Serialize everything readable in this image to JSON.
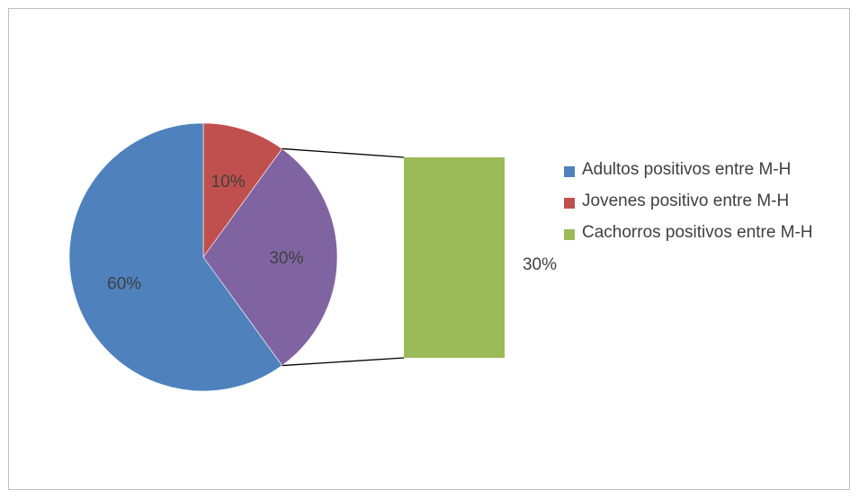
{
  "chart_data": {
    "type": "pie",
    "variant": "bar-of-pie",
    "categories": [
      "Adultos positivos entre M-H",
      "Jovenes positivo entre M-H",
      "Cachorros positivos entre M-H"
    ],
    "values": [
      60,
      10,
      30
    ],
    "labels": [
      "60%",
      "10%",
      "30%"
    ],
    "secondary_categories": [
      "Cachorros positivos entre M-H"
    ],
    "secondary_values": [
      30
    ],
    "secondary_labels": [
      "30%"
    ],
    "combined_label": "30%",
    "colors": [
      "#4f81bd",
      "#c0504d",
      "#8064a2",
      "#9bbb59"
    ],
    "legend_position": "right",
    "title": ""
  }
}
